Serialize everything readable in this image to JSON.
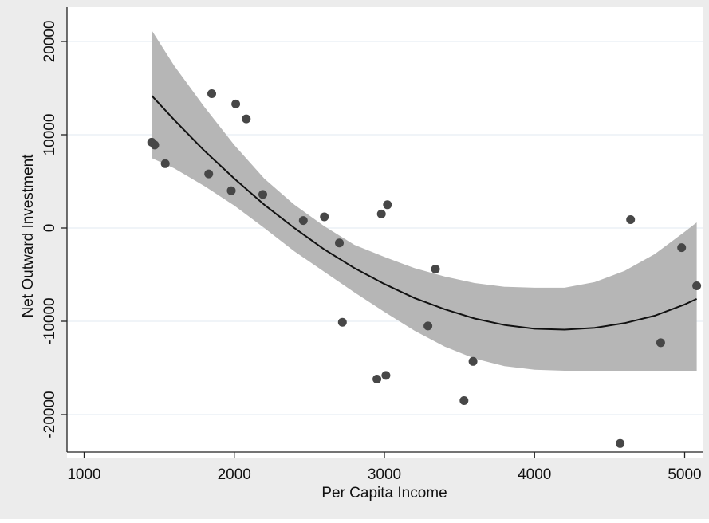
{
  "chart_data": {
    "type": "scatter",
    "title": "",
    "xlabel": "Per Capita Income",
    "ylabel": "Net Outward Investment",
    "xlim": [
      900,
      5150
    ],
    "ylim": [
      -24000,
      23000
    ],
    "xticks": [
      1000,
      2000,
      3000,
      4000,
      5000
    ],
    "xtick_labels": [
      "1000",
      "2000",
      "3000",
      "4000",
      "5000"
    ],
    "yticks": [
      -20000,
      -10000,
      0,
      10000,
      20000
    ],
    "ytick_labels": [
      "-20000",
      "-10000",
      "0",
      "10000",
      "20000"
    ],
    "grid": "horizontal",
    "legend": "none",
    "points": [
      {
        "x": 1450,
        "y": 9200
      },
      {
        "x": 1470,
        "y": 8900
      },
      {
        "x": 1540,
        "y": 6900
      },
      {
        "x": 1830,
        "y": 5800
      },
      {
        "x": 1850,
        "y": 14400
      },
      {
        "x": 1980,
        "y": 4000
      },
      {
        "x": 2010,
        "y": 13300
      },
      {
        "x": 2080,
        "y": 11700
      },
      {
        "x": 2190,
        "y": 3600
      },
      {
        "x": 2460,
        "y": 800
      },
      {
        "x": 2600,
        "y": 1200
      },
      {
        "x": 2700,
        "y": -1600
      },
      {
        "x": 2720,
        "y": -10100
      },
      {
        "x": 2950,
        "y": -16200
      },
      {
        "x": 2980,
        "y": 1500
      },
      {
        "x": 3010,
        "y": -15800
      },
      {
        "x": 3020,
        "y": 2500
      },
      {
        "x": 3290,
        "y": -10500
      },
      {
        "x": 3340,
        "y": -4400
      },
      {
        "x": 3530,
        "y": -18500
      },
      {
        "x": 3590,
        "y": -14300
      },
      {
        "x": 4570,
        "y": -23100
      },
      {
        "x": 4640,
        "y": 900
      },
      {
        "x": 4840,
        "y": -12300
      },
      {
        "x": 4980,
        "y": -2100
      },
      {
        "x": 5080,
        "y": -6200
      }
    ],
    "fit_line": {
      "x": [
        1450,
        1600,
        1800,
        2000,
        2200,
        2400,
        2600,
        2800,
        3000,
        3200,
        3400,
        3600,
        3800,
        4000,
        4200,
        4400,
        4600,
        4800,
        5000,
        5080
      ],
      "y": [
        14200,
        11600,
        8300,
        5300,
        2500,
        0,
        -2300,
        -4300,
        -6000,
        -7500,
        -8700,
        -9700,
        -10400,
        -10800,
        -10900,
        -10700,
        -10200,
        -9400,
        -8200,
        -7600
      ]
    },
    "ci_band": {
      "x": [
        1450,
        1600,
        1800,
        2000,
        2200,
        2400,
        2600,
        2800,
        3000,
        3200,
        3400,
        3600,
        3800,
        4000,
        4200,
        4400,
        4600,
        4800,
        5000,
        5080
      ],
      "lower": [
        7500,
        6400,
        4500,
        2400,
        0,
        -2500,
        -4700,
        -6900,
        -9000,
        -11000,
        -12700,
        -14000,
        -14800,
        -15200,
        -15300,
        -15300,
        -15300,
        -15300,
        -15300,
        -15300
      ],
      "upper": [
        21200,
        17400,
        13000,
        8900,
        5300,
        2500,
        200,
        -1800,
        -3100,
        -4300,
        -5200,
        -5900,
        -6300,
        -6400,
        -6400,
        -5800,
        -4600,
        -2800,
        -400,
        600
      ]
    },
    "colors": {
      "page_background": "#ececec",
      "plot_background": "#ffffff",
      "band": "#b6b6b6",
      "fit_line": "#111111",
      "points": "#474747",
      "grid": "#e7eef3",
      "axis": "#222222"
    }
  }
}
